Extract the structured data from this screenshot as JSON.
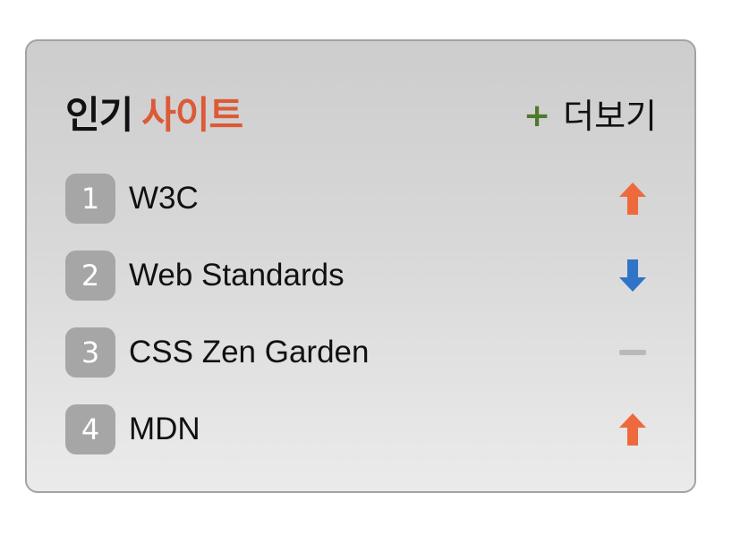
{
  "header": {
    "title_part1": "인기",
    "title_part2": "사이트",
    "more_plus": "+",
    "more_label": "더보기"
  },
  "colors": {
    "title_accent": "#dc5a37",
    "plus_green": "#4d7a2a",
    "rank_badge": "#a6a6a6",
    "trend_up": "#ee6a3c",
    "trend_down": "#2f74c6",
    "trend_same": "#b9b9b9"
  },
  "sites": [
    {
      "rank": "1",
      "name": "W3C",
      "trend": "up",
      "trend_icon": "arrow-up-icon"
    },
    {
      "rank": "2",
      "name": "Web Standards",
      "trend": "down",
      "trend_icon": "arrow-down-icon"
    },
    {
      "rank": "3",
      "name": "CSS Zen Garden",
      "trend": "same",
      "trend_icon": "dash-icon"
    },
    {
      "rank": "4",
      "name": "MDN",
      "trend": "up",
      "trend_icon": "arrow-up-icon"
    }
  ]
}
